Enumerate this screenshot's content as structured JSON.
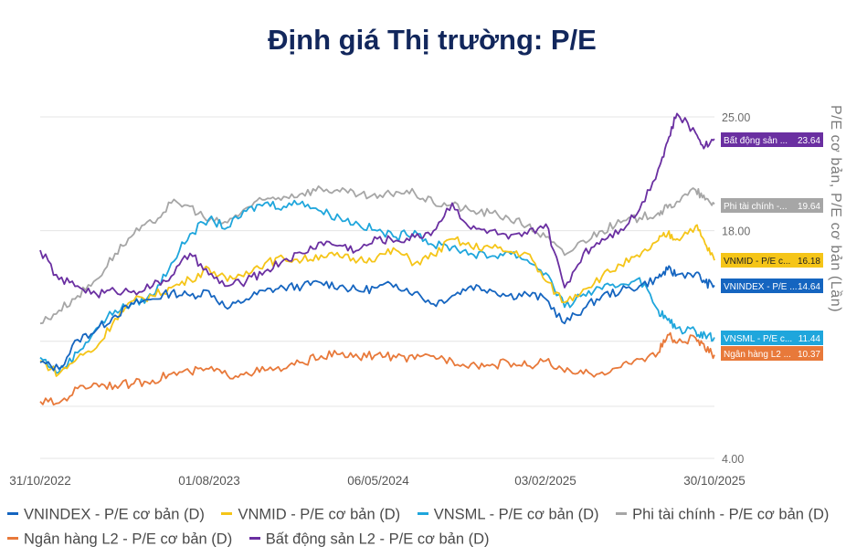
{
  "title": "Định giá Thị trường: P/E",
  "chart_data": {
    "type": "line",
    "title": "Định giá Thị trường: P/E",
    "ylabel": "P/E cơ bản, P/E cơ bản (Lần)",
    "xlabel": "",
    "ylim": [
      4,
      25
    ],
    "yticks": [
      "25.00",
      "18.00",
      "4.00"
    ],
    "ytick_values": [
      25,
      18,
      4
    ],
    "x_domain": [
      0,
      36
    ],
    "xticks": [
      "31/10/2022",
      "01/08/2023",
      "06/05/2024",
      "03/02/2025",
      "30/10/2025"
    ],
    "xtick_values": [
      0,
      9,
      18,
      27,
      36
    ],
    "series": [
      {
        "name": "VNINDEX - P/E cơ bản (D)",
        "color": "#1565c0",
        "end_label": "VNINDEX - P/E ...",
        "end_value": "14.64",
        "x": [
          0,
          1,
          2,
          3,
          4,
          5,
          6,
          7,
          8,
          9,
          10,
          11,
          12,
          13,
          14,
          15,
          16,
          17,
          18,
          19,
          20,
          21,
          22,
          23,
          24,
          25,
          26,
          27,
          28,
          29,
          30,
          31,
          32,
          33,
          33.5,
          34,
          35,
          35.5,
          36
        ],
        "values": [
          9.9,
          9.5,
          11.3,
          11.9,
          12.8,
          13.5,
          13.8,
          14.2,
          14.0,
          14.3,
          13.2,
          13.8,
          14.3,
          14.5,
          14.6,
          14.8,
          14.6,
          14.3,
          14.5,
          14.7,
          14.2,
          13.5,
          14.0,
          14.6,
          14.4,
          14.0,
          14.1,
          13.8,
          12.3,
          13.2,
          14.0,
          14.3,
          14.6,
          15.1,
          15.6,
          15.3,
          15.4,
          14.8,
          14.64
        ]
      },
      {
        "name": "VNMID - P/E cơ bản (D)",
        "color": "#f5c518",
        "end_label": "VNMID - P/E c...",
        "end_value": "16.18",
        "x": [
          0,
          1,
          2,
          3,
          4,
          5,
          6,
          7,
          8,
          9,
          10,
          11,
          12,
          13,
          14,
          15,
          16,
          17,
          18,
          19,
          20,
          21,
          22,
          23,
          24,
          25,
          26,
          27,
          28,
          29,
          30,
          31,
          32,
          33,
          33.5,
          34,
          35,
          35.5,
          36
        ],
        "values": [
          10.0,
          9.2,
          10.2,
          10.8,
          12.6,
          13.7,
          14.0,
          14.5,
          15.0,
          15.7,
          14.9,
          15.5,
          16.0,
          16.3,
          16.2,
          16.5,
          16.4,
          16.2,
          16.4,
          16.8,
          16.0,
          16.5,
          17.5,
          17.0,
          17.0,
          16.7,
          16.6,
          14.9,
          13.6,
          14.4,
          15.2,
          15.9,
          16.4,
          17.4,
          17.8,
          17.5,
          18.3,
          17.2,
          16.18
        ]
      },
      {
        "name": "VNSML - P/E cơ bản (D)",
        "color": "#1fa6dc",
        "end_label": "VNSML - P/E c...",
        "end_value": "11.44",
        "x": [
          0,
          1,
          2,
          3,
          4,
          5,
          6,
          7,
          8,
          9,
          10,
          11,
          12,
          13,
          14,
          15,
          16,
          17,
          18,
          19,
          20,
          21,
          22,
          23,
          24,
          25,
          26,
          27,
          28,
          29,
          30,
          31,
          32,
          33,
          33.5,
          34,
          35,
          35.5,
          36
        ],
        "values": [
          10.2,
          9.3,
          10.5,
          12.0,
          13.1,
          13.5,
          14.0,
          16.0,
          17.8,
          18.7,
          18.2,
          19.2,
          19.7,
          19.5,
          19.8,
          19.2,
          18.8,
          18.4,
          18.0,
          17.6,
          18.0,
          17.1,
          17.0,
          16.6,
          16.4,
          16.7,
          16.2,
          15.4,
          13.3,
          14.1,
          14.4,
          14.7,
          15.1,
          13.1,
          12.5,
          12.0,
          11.8,
          11.6,
          11.44
        ]
      },
      {
        "name": "Phi tài chính - P/E cơ bản (D)",
        "color": "#a6a6a6",
        "end_label": "Phi tài chính -...",
        "end_value": "19.64",
        "x": [
          0,
          1,
          2,
          3,
          4,
          5,
          6,
          7,
          8,
          9,
          10,
          11,
          12,
          13,
          14,
          15,
          16,
          17,
          18,
          19,
          20,
          21,
          22,
          23,
          24,
          25,
          26,
          27,
          28,
          29,
          30,
          31,
          32,
          33,
          33.5,
          34,
          35,
          35.5,
          36
        ],
        "values": [
          12.3,
          13.1,
          14.0,
          15.0,
          16.6,
          17.8,
          18.5,
          19.7,
          19.5,
          18.6,
          18.5,
          19.4,
          19.9,
          20.1,
          20.3,
          20.6,
          20.4,
          20.2,
          20.0,
          20.4,
          20.3,
          19.7,
          19.6,
          19.2,
          19.1,
          18.8,
          18.3,
          17.6,
          16.5,
          17.4,
          18.0,
          18.5,
          18.8,
          19.1,
          19.4,
          19.8,
          20.5,
          19.9,
          19.64
        ]
      },
      {
        "name": "Ngân hàng L2 - P/E cơ bản (D)",
        "color": "#e8793a",
        "end_label": "Ngân hàng L2 ...",
        "end_value": "10.37",
        "x": [
          0,
          1,
          2,
          3,
          4,
          5,
          6,
          7,
          8,
          9,
          10,
          11,
          12,
          13,
          14,
          15,
          16,
          17,
          18,
          19,
          20,
          21,
          22,
          23,
          24,
          25,
          26,
          27,
          28,
          29,
          30,
          31,
          32,
          33,
          33.5,
          34,
          35,
          35.5,
          36
        ],
        "values": [
          7.5,
          7.4,
          8.3,
          8.6,
          8.5,
          8.6,
          8.8,
          9.2,
          9.3,
          9.5,
          9.1,
          9.3,
          9.4,
          9.5,
          9.9,
          10.3,
          10.4,
          10.2,
          10.4,
          10.2,
          10.1,
          10.3,
          10.0,
          9.8,
          9.7,
          9.9,
          9.7,
          10.0,
          9.3,
          9.2,
          9.3,
          9.6,
          10.1,
          10.5,
          11.6,
          11.1,
          11.4,
          10.7,
          10.37
        ]
      },
      {
        "name": "Bất động sản L2 - P/E cơ bản (D)",
        "color": "#6a2fa1",
        "end_label": "Bất động sản ...",
        "end_value": "23.64",
        "x": [
          0,
          1,
          2,
          3,
          4,
          5,
          6,
          7,
          8,
          9,
          10,
          11,
          12,
          13,
          14,
          15,
          16,
          17,
          18,
          19,
          20,
          21,
          22,
          23,
          24,
          25,
          26,
          27,
          28,
          29,
          30,
          31,
          32,
          33,
          33.5,
          34,
          35,
          35.5,
          36
        ],
        "values": [
          16.8,
          15.0,
          14.6,
          14.1,
          14.3,
          14.3,
          14.6,
          15.2,
          16.6,
          15.3,
          14.6,
          14.9,
          15.5,
          16.2,
          16.6,
          17.3,
          17.1,
          16.8,
          17.5,
          17.4,
          17.6,
          18.0,
          19.7,
          18.1,
          18.0,
          17.5,
          17.8,
          18.4,
          14.5,
          16.6,
          17.5,
          18.1,
          19.3,
          21.8,
          23.5,
          25.2,
          24.0,
          23.2,
          23.64
        ]
      }
    ]
  }
}
